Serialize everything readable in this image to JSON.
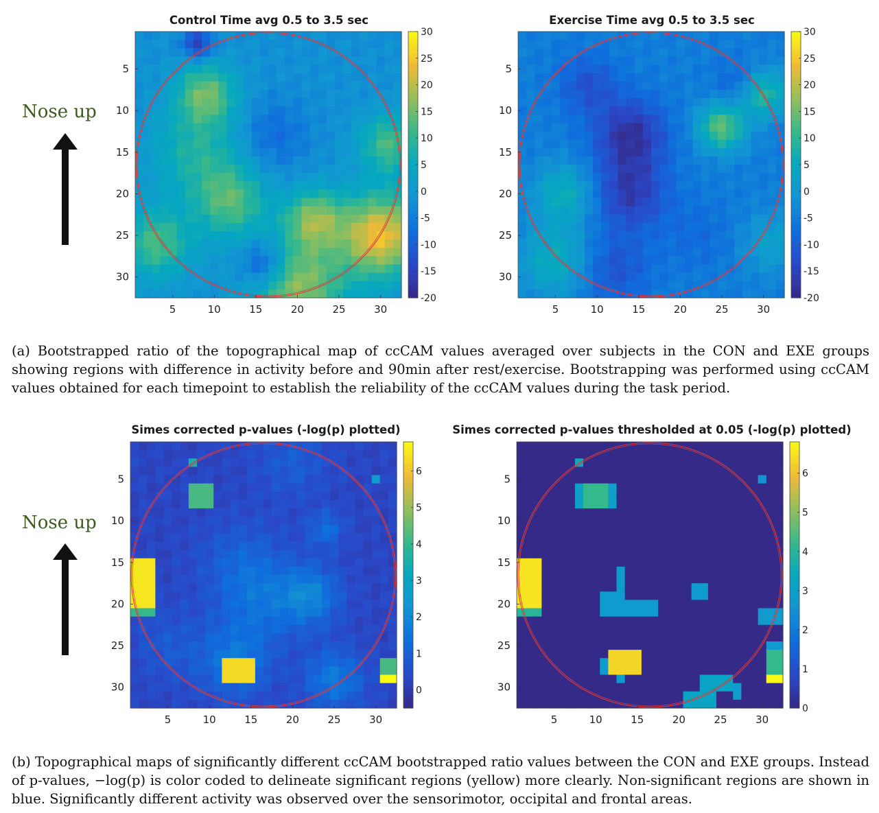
{
  "orientation": {
    "label": "Nose up"
  },
  "figure_a": {
    "caption": "(a) Bootstrapped ratio of the topographical map of ccCAM values averaged over subjects in the CON and EXE groups showing regions with difference in activity before and 90min after rest/exercise. Bootstrapping was performed using ccCAM values obtained for each timepoint to establish the reliability of the ccCAM values during the task period."
  },
  "figure_b": {
    "caption": "(b) Topographical maps of significantly different ccCAM bootstrapped ratio values between the CON and EXE groups. Instead of p-values, −log(p) is color coded to delineate significant regions (yellow) more clearly. Non-significant regions are shown in blue. Significantly different activity was observed over the sensorimotor, occipital and frontal areas."
  },
  "colors": {
    "circle": "#e03a3a",
    "colormap": "parula",
    "arrow": "#111111"
  },
  "chart_data": [
    {
      "id": "control",
      "type": "heatmap",
      "title": "Control Time avg 0.5 to 3.5 sec",
      "grid_size": [
        32,
        32
      ],
      "x_ticks": [
        5,
        10,
        15,
        20,
        25,
        30
      ],
      "y_ticks": [
        5,
        10,
        15,
        20,
        25,
        30
      ],
      "colorbar": {
        "min": -20,
        "max": 30,
        "ticks": [
          30,
          25,
          20,
          15,
          10,
          5,
          0,
          -5,
          -10,
          -15,
          -20
        ]
      },
      "base": -2,
      "hotspots": [
        {
          "x": 9,
          "y": 8,
          "v": 14,
          "r": 2.5
        },
        {
          "x": 8,
          "y": 15,
          "v": 8,
          "r": 4
        },
        {
          "x": 12,
          "y": 21,
          "v": 12,
          "r": 3
        },
        {
          "x": 22,
          "y": 23,
          "v": 15,
          "r": 2.5
        },
        {
          "x": 30,
          "y": 25,
          "v": 24,
          "r": 3.5
        },
        {
          "x": 31,
          "y": 14,
          "v": 12,
          "r": 2.5
        },
        {
          "x": 3,
          "y": 26,
          "v": 12,
          "r": 3
        },
        {
          "x": 20,
          "y": 31,
          "v": 17,
          "r": 4
        },
        {
          "x": 17,
          "y": 13,
          "v": -8,
          "r": 3
        },
        {
          "x": 8,
          "y": 2,
          "v": -16,
          "r": 1.2
        },
        {
          "x": 16,
          "y": 28.5,
          "v": -15,
          "r": 2
        }
      ]
    },
    {
      "id": "exercise",
      "type": "heatmap",
      "title": "Exercise Time avg 0.5 to 3.5 sec",
      "grid_size": [
        32,
        32
      ],
      "x_ticks": [
        5,
        10,
        15,
        20,
        25,
        30
      ],
      "y_ticks": [
        5,
        10,
        15,
        20,
        25,
        30
      ],
      "colorbar": {
        "min": -20,
        "max": 30,
        "ticks": [
          30,
          25,
          20,
          15,
          10,
          5,
          0,
          -5,
          -10,
          -15,
          -20
        ]
      },
      "base": -5,
      "hotspots": [
        {
          "x": 14,
          "y": 13,
          "v": -18,
          "r": 3
        },
        {
          "x": 14,
          "y": 20,
          "v": -16,
          "r": 3
        },
        {
          "x": 9,
          "y": 7,
          "v": -12,
          "r": 2.5
        },
        {
          "x": 27,
          "y": 7,
          "v": -10,
          "r": 2
        },
        {
          "x": 25,
          "y": 12,
          "v": 14,
          "r": 2
        },
        {
          "x": 30,
          "y": 8,
          "v": 10,
          "r": 2
        },
        {
          "x": 6,
          "y": 20,
          "v": 6,
          "r": 2.5
        },
        {
          "x": 5,
          "y": 28,
          "v": 6,
          "r": 3
        },
        {
          "x": 12,
          "y": 29,
          "v": -12,
          "r": 3
        },
        {
          "x": 22,
          "y": 25,
          "v": -8,
          "r": 3
        },
        {
          "x": 31,
          "y": 26,
          "v": 2,
          "r": 2.5
        }
      ]
    },
    {
      "id": "simes",
      "type": "heatmap",
      "title": "Simes corrected p-values (-log(p) plotted)",
      "grid_size": [
        32,
        32
      ],
      "x_ticks": [
        5,
        10,
        15,
        20,
        25,
        30
      ],
      "y_ticks": [
        5,
        10,
        15,
        20,
        25,
        30
      ],
      "colorbar": {
        "min": -0.5,
        "max": 6.8,
        "ticks": [
          6,
          5,
          4,
          3,
          2,
          1,
          0
        ]
      },
      "base": 0.3,
      "hotspots": [
        {
          "x": 14,
          "y": 15,
          "v": 1.0,
          "r": 3.5
        },
        {
          "x": 16,
          "y": 20,
          "v": 1.2,
          "r": 3.5
        },
        {
          "x": 22,
          "y": 19,
          "v": 1.8,
          "r": 2.5
        },
        {
          "x": 24,
          "y": 11,
          "v": 1.3,
          "r": 1.5
        },
        {
          "x": 13,
          "y": 27,
          "v": 1.5,
          "r": 3
        },
        {
          "x": 25,
          "y": 29,
          "v": 1.6,
          "r": 2.5
        },
        {
          "x": 20,
          "y": 3,
          "v": 0.9,
          "r": 3
        },
        {
          "x": 5,
          "y": 25,
          "v": 0.8,
          "r": 3
        }
      ],
      "blocks": [
        {
          "x0": 1,
          "x1": 3,
          "y0": 15,
          "y1": 20,
          "v": 6.5
        },
        {
          "x0": 1,
          "x1": 3,
          "y0": 21,
          "y1": 21,
          "v": 4.0
        },
        {
          "x0": 8,
          "x1": 10,
          "y0": 6,
          "y1": 8,
          "v": 4.2
        },
        {
          "x0": 12,
          "x1": 15,
          "y0": 27,
          "y1": 29,
          "v": 6.3
        },
        {
          "x0": 31,
          "x1": 32,
          "y0": 27,
          "y1": 28,
          "v": 4.2
        },
        {
          "x0": 31,
          "x1": 32,
          "y0": 29,
          "y1": 29,
          "v": 6.8
        },
        {
          "x0": 8,
          "x1": 8,
          "y0": 3,
          "y1": 3,
          "v": 3.5
        },
        {
          "x0": 30,
          "x1": 30,
          "y0": 5,
          "y1": 5,
          "v": 2.5
        }
      ]
    },
    {
      "id": "simes-thresholded",
      "type": "heatmap",
      "title": "Simes corrected p-values thresholded at 0.05 (-log(p) plotted)",
      "grid_size": [
        32,
        32
      ],
      "x_ticks": [
        5,
        10,
        15,
        20,
        25,
        30
      ],
      "y_ticks": [
        5,
        10,
        15,
        20,
        25,
        30
      ],
      "colorbar": {
        "min": 0,
        "max": 6.8,
        "ticks": [
          6,
          5,
          4,
          3,
          2,
          1,
          0
        ]
      },
      "base": 0,
      "blocks": [
        {
          "x0": 8,
          "x1": 8,
          "y0": 3,
          "y1": 3,
          "v": 3.5
        },
        {
          "x0": 30,
          "x1": 30,
          "y0": 5,
          "y1": 5,
          "v": 2.5
        },
        {
          "x0": 8,
          "x1": 8,
          "y0": 6,
          "y1": 8,
          "v": 3.0
        },
        {
          "x0": 9,
          "x1": 11,
          "y0": 6,
          "y1": 8,
          "v": 4.2
        },
        {
          "x0": 12,
          "x1": 12,
          "y0": 6,
          "y1": 8,
          "v": 3.0
        },
        {
          "x0": 1,
          "x1": 3,
          "y0": 15,
          "y1": 20,
          "v": 6.5
        },
        {
          "x0": 1,
          "x1": 3,
          "y0": 21,
          "y1": 21,
          "v": 4.0
        },
        {
          "x0": 13,
          "x1": 13,
          "y0": 16,
          "y1": 21,
          "v": 2.8
        },
        {
          "x0": 11,
          "x1": 12,
          "y0": 19,
          "y1": 21,
          "v": 2.8
        },
        {
          "x0": 14,
          "x1": 17,
          "y0": 20,
          "y1": 21,
          "v": 2.8
        },
        {
          "x0": 22,
          "x1": 23,
          "y0": 18,
          "y1": 19,
          "v": 2.8
        },
        {
          "x0": 30,
          "x1": 32,
          "y0": 21,
          "y1": 22,
          "v": 2.8
        },
        {
          "x0": 31,
          "x1": 32,
          "y0": 25,
          "y1": 25,
          "v": 2.8
        },
        {
          "x0": 11,
          "x1": 11,
          "y0": 27,
          "y1": 28,
          "v": 2.8
        },
        {
          "x0": 12,
          "x1": 15,
          "y0": 26,
          "y1": 28,
          "v": 6.3
        },
        {
          "x0": 13,
          "x1": 13,
          "y0": 29,
          "y1": 29,
          "v": 2.8
        },
        {
          "x0": 31,
          "x1": 32,
          "y0": 26,
          "y1": 28,
          "v": 4.2
        },
        {
          "x0": 31,
          "x1": 32,
          "y0": 29,
          "y1": 29,
          "v": 6.8
        },
        {
          "x0": 23,
          "x1": 26,
          "y0": 29,
          "y1": 30,
          "v": 3.2
        },
        {
          "x0": 21,
          "x1": 24,
          "y0": 31,
          "y1": 32,
          "v": 3.2
        },
        {
          "x0": 27,
          "x1": 27,
          "y0": 30,
          "y1": 31,
          "v": 2.8
        }
      ]
    }
  ]
}
